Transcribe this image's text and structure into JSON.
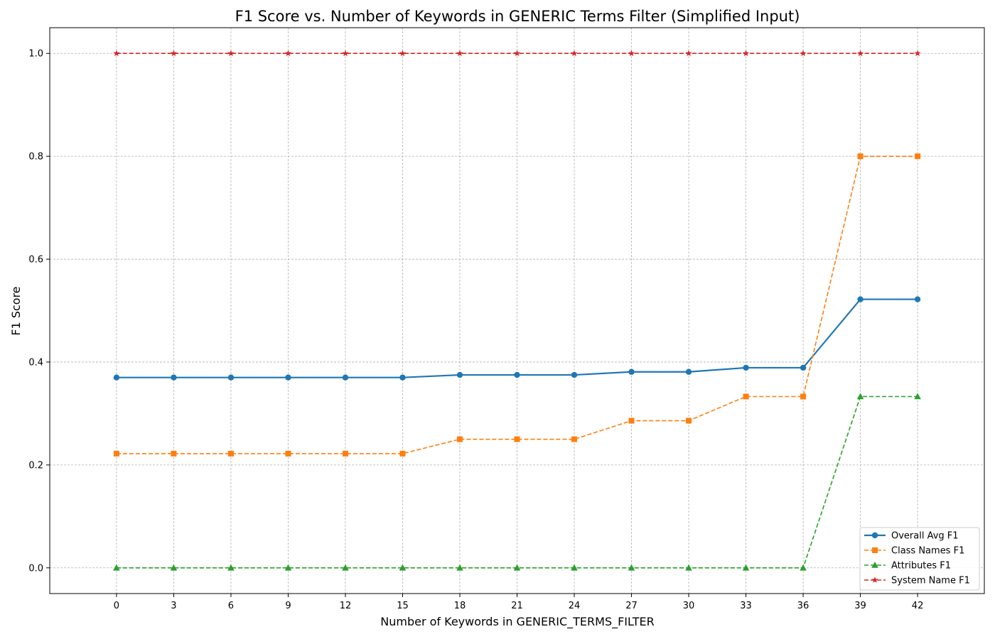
{
  "chart_data": {
    "type": "line",
    "title": "F1 Score vs. Number of Keywords in GENERIC Terms Filter (Simplified Input)",
    "xlabel": "Number of Keywords in GENERIC_TERMS_FILTER",
    "ylabel": "F1 Score",
    "xlim": [
      -3.5,
      45.5
    ],
    "ylim": [
      -0.05,
      1.05
    ],
    "x": [
      0,
      3,
      6,
      9,
      12,
      15,
      18,
      21,
      24,
      27,
      30,
      33,
      36,
      39,
      42
    ],
    "x_ticks": [
      0,
      3,
      6,
      9,
      12,
      15,
      18,
      21,
      24,
      27,
      30,
      33,
      36,
      39,
      42
    ],
    "y_ticks": [
      0.0,
      0.2,
      0.4,
      0.6,
      0.8,
      1.0
    ],
    "y_tick_labels": [
      "0.0",
      "0.2",
      "0.4",
      "0.6",
      "0.8",
      "1.0"
    ],
    "grid": true,
    "legend_position": "lower-right",
    "series": [
      {
        "name": "Overall Avg F1",
        "color": "#1f77b4",
        "marker": "circle",
        "linestyle": "solid",
        "values": [
          0.37,
          0.37,
          0.37,
          0.37,
          0.37,
          0.37,
          0.375,
          0.375,
          0.375,
          0.381,
          0.381,
          0.389,
          0.389,
          0.522,
          0.522
        ]
      },
      {
        "name": "Class Names F1",
        "color": "#ff7f0e",
        "marker": "square",
        "linestyle": "dashed",
        "values": [
          0.222,
          0.222,
          0.222,
          0.222,
          0.222,
          0.222,
          0.25,
          0.25,
          0.25,
          0.286,
          0.286,
          0.333,
          0.333,
          0.8,
          0.8
        ]
      },
      {
        "name": "Attributes F1",
        "color": "#2ca02c",
        "marker": "triangle",
        "linestyle": "dashed",
        "values": [
          0.0,
          0.0,
          0.0,
          0.0,
          0.0,
          0.0,
          0.0,
          0.0,
          0.0,
          0.0,
          0.0,
          0.0,
          0.0,
          0.333,
          0.333
        ]
      },
      {
        "name": "System Name F1",
        "color": "#d62728",
        "marker": "star",
        "linestyle": "dashed",
        "values": [
          1.0,
          1.0,
          1.0,
          1.0,
          1.0,
          1.0,
          1.0,
          1.0,
          1.0,
          1.0,
          1.0,
          1.0,
          1.0,
          1.0,
          1.0
        ]
      }
    ]
  }
}
